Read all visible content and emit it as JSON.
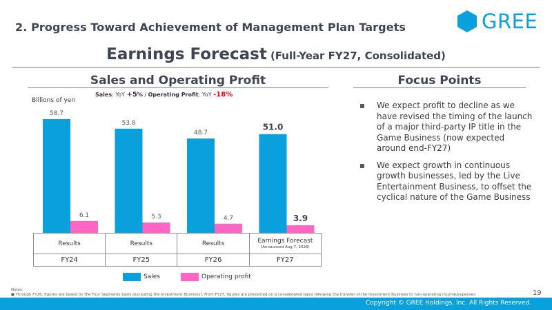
{
  "header": {
    "section_title": "2. Progress Toward Achievement of Management Plan Targets",
    "logo_text": "GREE",
    "title_main": "Earnings Forecast",
    "title_sub": "(Full-Year FY27, Consolidated)"
  },
  "left_panel": {
    "heading": "Sales and Operating Profit",
    "unit": "Billions of yen",
    "yoy": {
      "sales_label": "Sales",
      "sales_yoy_label": ": YoY",
      "sales_yoy_value": "+5",
      "sales_yoy_unit": "%",
      "separator": " / ",
      "op_label": "Operating Profit",
      "op_yoy_label": ": YoY",
      "op_yoy_value": "-18",
      "op_yoy_unit": "%"
    }
  },
  "chart_data": {
    "type": "bar",
    "categories": [
      "FY24",
      "FY25",
      "FY26",
      "FY27"
    ],
    "category_types": [
      "Results",
      "Results",
      "Results",
      "Earnings Forecast"
    ],
    "category_notes": [
      "",
      "",
      "",
      "(Announced Aug 7, 2026)"
    ],
    "series": [
      {
        "name": "Sales",
        "values": [
          58.7,
          53.8,
          48.7,
          51.0
        ],
        "color": "#0aa0de",
        "value_labels": [
          "58.7",
          "53.8",
          "48.7",
          "51.0"
        ]
      },
      {
        "name": "Operating profit",
        "values": [
          6.1,
          5.3,
          4.7,
          3.9
        ],
        "color": "#ff66c4",
        "value_labels": [
          "6.1",
          "5.3",
          "4.7",
          "3.9"
        ]
      }
    ],
    "highlight_index": 3,
    "ylabel": "Billions of yen",
    "ylim": [
      0,
      60
    ],
    "grid": false,
    "legend_position": "bottom-center"
  },
  "right_panel": {
    "heading": "Focus Points",
    "points": [
      "We expect profit to decline as we have revised the timing of the launch of a major third-party IP title in the Game Business (now expected around end-FY27)",
      "We expect growth in continuous growth businesses, led by the Live Entertainment Business, to offset the cyclical nature of the Game Business"
    ]
  },
  "notes": {
    "label": "Notes:",
    "items": [
      "Through FY26, figures are based on the Four Segments basis (excluding the Investment Business). From FY27, figures are presented on a consolidated basis following the transfer of the Investment Business to non-operating income/expenses"
    ]
  },
  "page_number": "19",
  "footer": {
    "copyright": "Copyright © GREE Holdings, Inc. All Rights Reserved."
  },
  "colors": {
    "accent": "#0aa0de",
    "pink": "#ff66c4",
    "negative": "#e60012",
    "title": "#3e4453"
  }
}
